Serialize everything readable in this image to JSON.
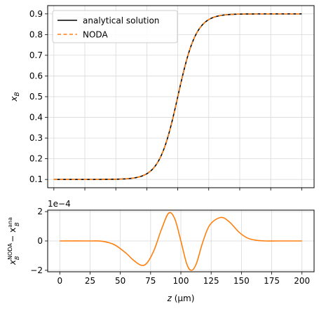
{
  "chart_data": [
    {
      "type": "line",
      "xlabel": "",
      "ylabel": "x_B",
      "xlim": [
        -5,
        210
      ],
      "ylim": [
        0.06,
        0.94
      ],
      "x_ticks": [
        0,
        25,
        50,
        75,
        100,
        125,
        150,
        175,
        200
      ],
      "y_ticks": [
        0.1,
        0.2,
        0.3,
        0.4,
        0.5,
        0.6,
        0.7,
        0.8,
        0.9
      ],
      "y_tick_labels": [
        "0.1",
        "0.2",
        "0.3",
        "0.4",
        "0.5",
        "0.6",
        "0.7",
        "0.8",
        "0.9"
      ],
      "grid": true,
      "legend": "top-left",
      "series": [
        {
          "name": "analytical solution",
          "color": "#000000",
          "style": "solid",
          "profile": {
            "x_min": 0,
            "x_max": 200,
            "low": 0.1,
            "high": 0.9,
            "center": 100,
            "width": 30
          }
        },
        {
          "name": "NODA",
          "color": "#ff7f0e",
          "style": "dashed",
          "profile": {
            "x_min": 0,
            "x_max": 200,
            "low": 0.1,
            "high": 0.9,
            "center": 100,
            "width": 30
          }
        }
      ]
    },
    {
      "type": "line",
      "xlabel": "z (μm)",
      "ylabel_main": "x",
      "ylabel_sup": "NODA",
      "ylabel_sub": "B",
      "ylabel_mid": " − x",
      "ylabel_sup2": "ana",
      "ylabel_sub2": "B",
      "offset_text": "1e−4",
      "xlim": [
        -10,
        210
      ],
      "ylim": [
        -2.1,
        2.1
      ],
      "x_ticks": [
        0,
        25,
        50,
        75,
        100,
        125,
        150,
        175,
        200
      ],
      "x_tick_labels": [
        "0",
        "25",
        "50",
        "75",
        "100",
        "125",
        "150",
        "175",
        "200"
      ],
      "y_ticks": [
        -2,
        0,
        2
      ],
      "y_tick_labels": [
        "−2",
        "0",
        "2"
      ],
      "grid": true,
      "series": [
        {
          "name": "",
          "color": "#ff7f0e",
          "style": "solid",
          "x": [
            0,
            25,
            35,
            45,
            55,
            60,
            67,
            72,
            78,
            84,
            90,
            95,
            100,
            105,
            109,
            113,
            118,
            124,
            133,
            140,
            148,
            155,
            162,
            170,
            180,
            190,
            200
          ],
          "y": [
            0.0,
            0.0,
            -0.02,
            -0.25,
            -0.85,
            -1.25,
            -1.65,
            -1.5,
            -0.6,
            0.8,
            1.9,
            1.5,
            0.0,
            -1.6,
            -2.0,
            -1.5,
            -0.1,
            1.1,
            1.6,
            1.3,
            0.6,
            0.2,
            0.05,
            0.0,
            0.0,
            0.0,
            0.0
          ]
        }
      ]
    }
  ]
}
